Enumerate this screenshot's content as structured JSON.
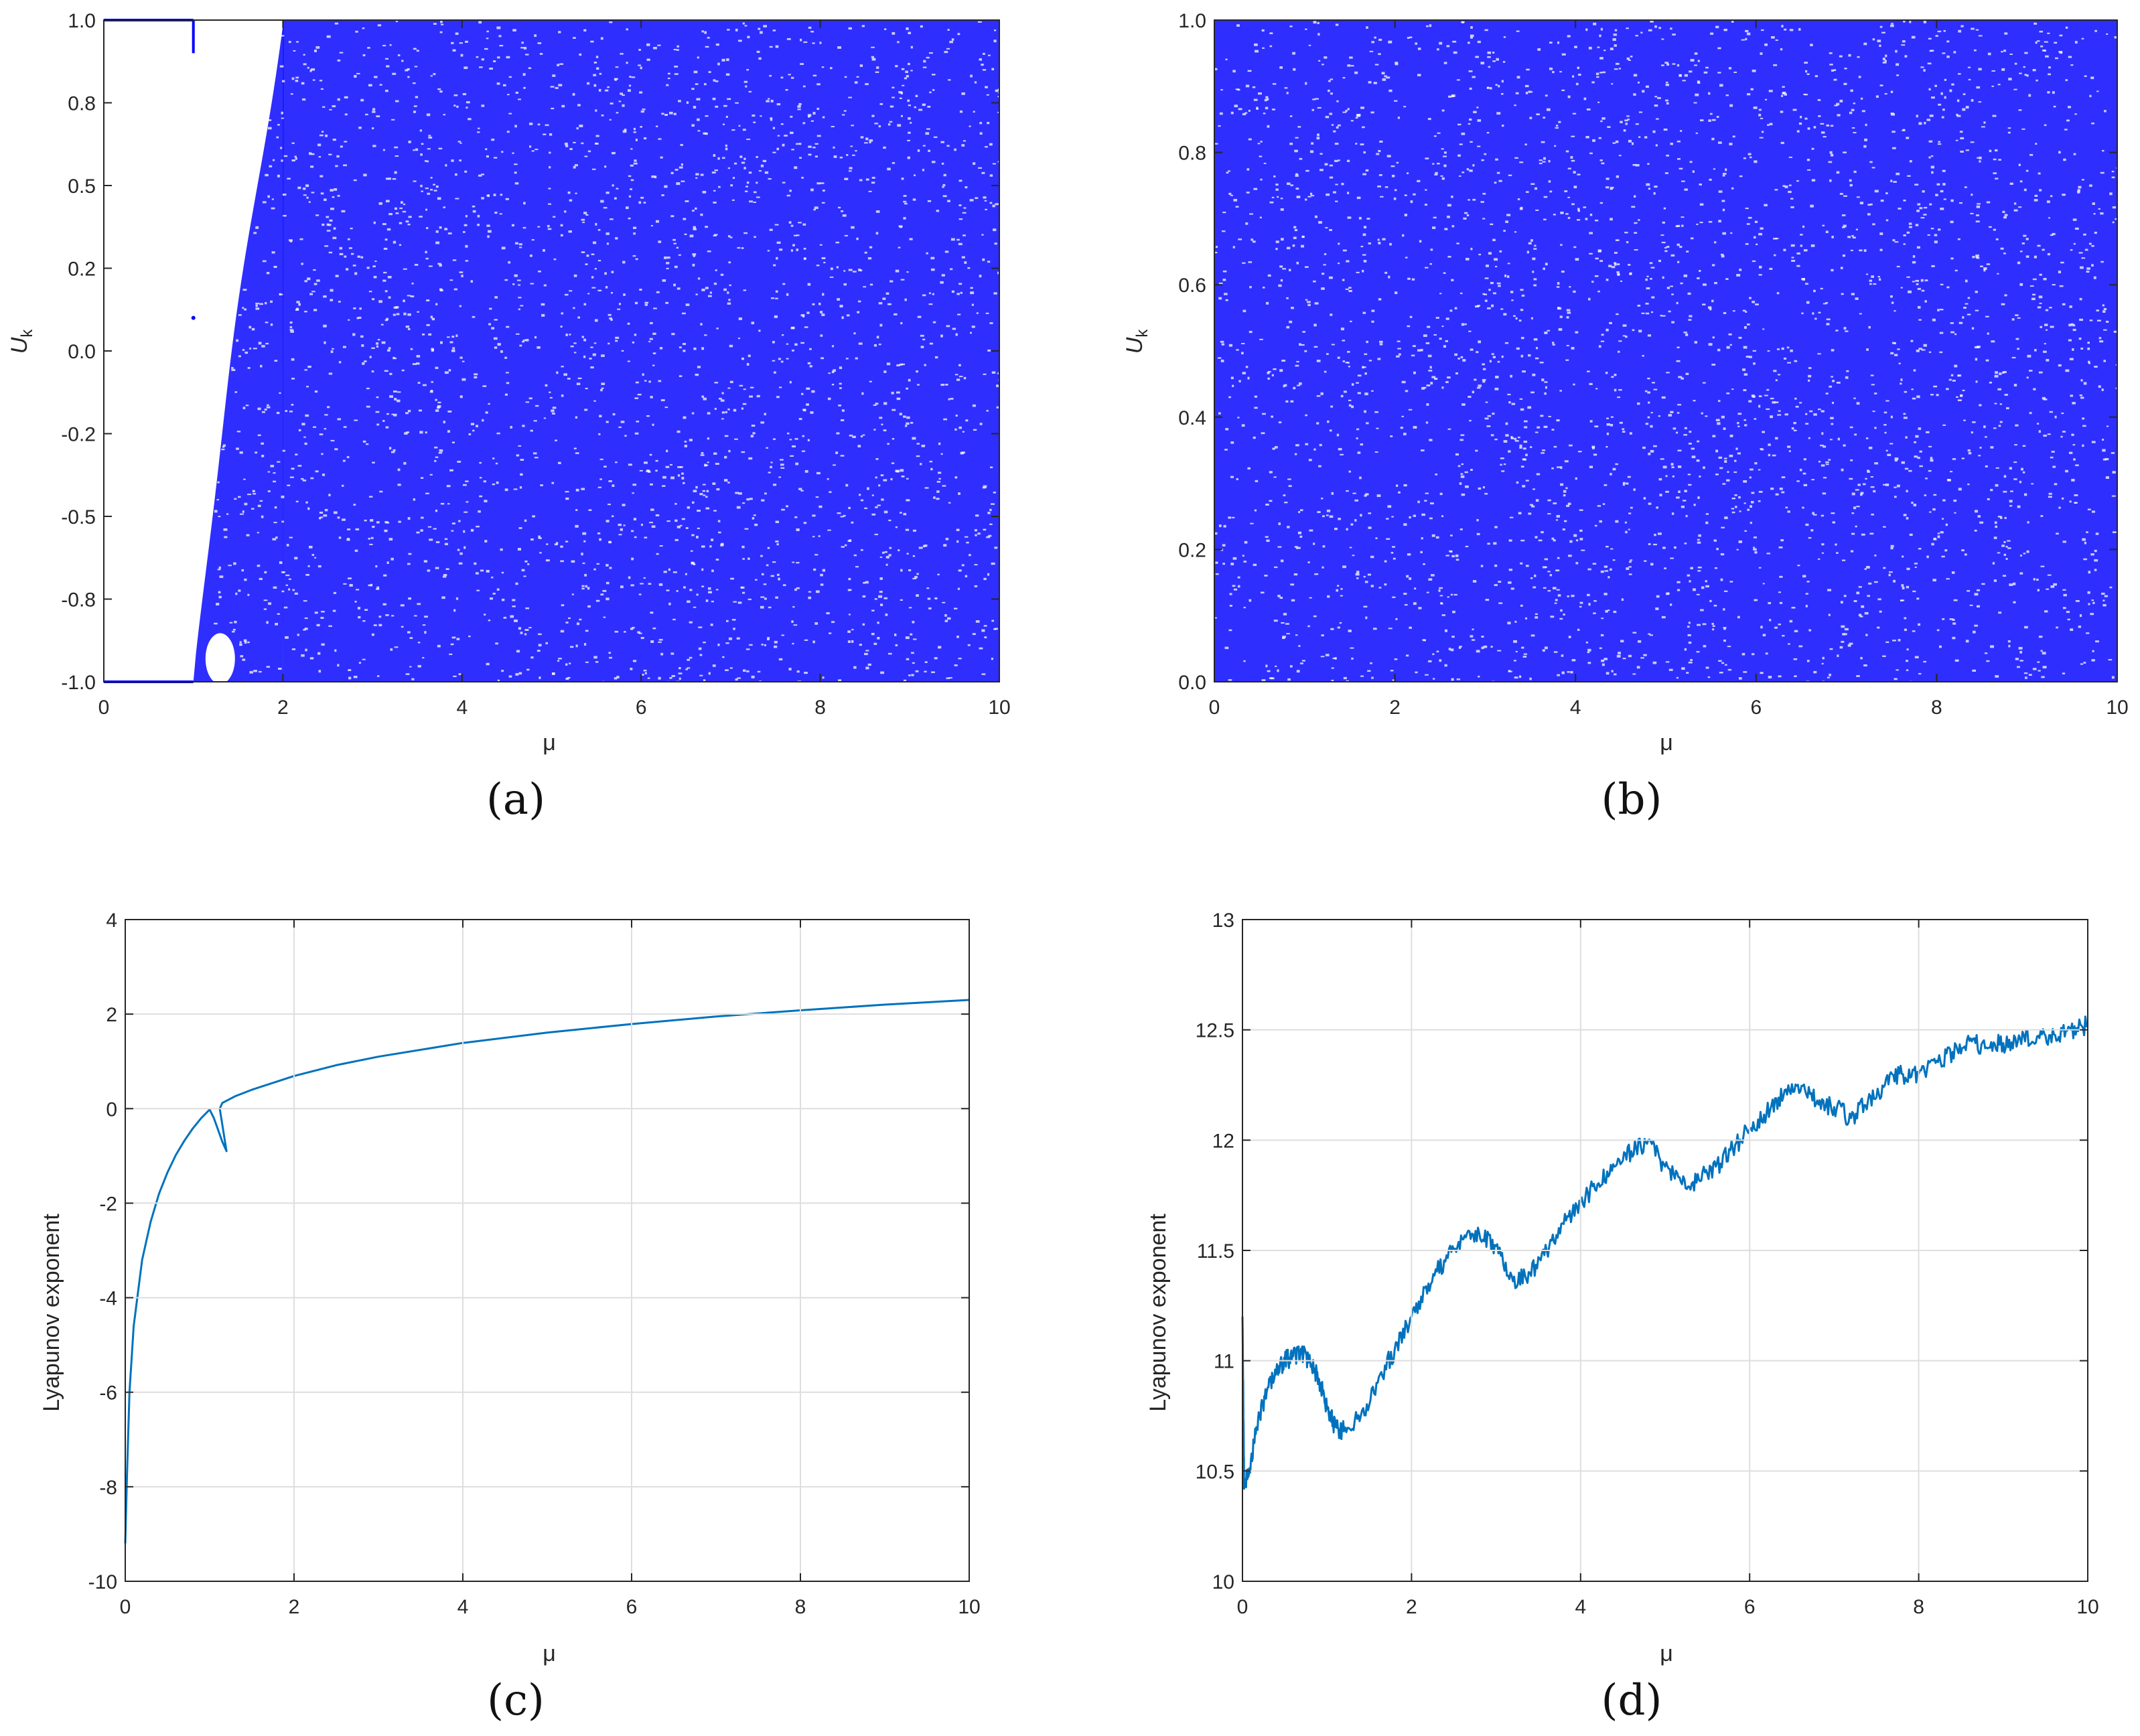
{
  "chart_data": [
    {
      "id": "a",
      "type": "scatter",
      "caption": "(a)",
      "xlabel": "μ",
      "ylabel": "U",
      "ylabel_subscript": "k",
      "xlim": [
        0,
        10
      ],
      "ylim": [
        -1.0,
        1.0
      ],
      "grid": false,
      "xticks": [
        "0",
        "2",
        "4",
        "6",
        "8",
        "10"
      ],
      "yticks": [
        "-1.0",
        "-0.8",
        "-0.5",
        "-0.2",
        "0.0",
        "0.2",
        "0.5",
        "0.8",
        "1.0"
      ],
      "ytick_values": [
        -1.0,
        -0.75,
        -0.5,
        -0.25,
        0.0,
        0.25,
        0.5,
        0.75,
        1.0
      ],
      "description_points": {
        "fixed_point_upper": {
          "mu_range": [
            0,
            1.0
          ],
          "u": 1.0
        },
        "fixed_point_lower": {
          "mu_range": [
            0,
            1.0
          ],
          "u": -1.0
        },
        "chaotic_onset_mu": [
          1.0,
          2.0
        ],
        "chaotic_fill": {
          "mu_range": [
            2.0,
            10.0
          ],
          "u_range": [
            -1.0,
            1.0
          ]
        }
      },
      "color": "#0000ff"
    },
    {
      "id": "b",
      "type": "scatter",
      "caption": "(b)",
      "xlabel": "μ",
      "ylabel": "U",
      "ylabel_subscript": "k",
      "xlim": [
        0,
        10
      ],
      "ylim": [
        0.0,
        1.0
      ],
      "grid": false,
      "xticks": [
        "0",
        "2",
        "4",
        "6",
        "8",
        "10"
      ],
      "yticks": [
        "0.0",
        "0.2",
        "0.4",
        "0.6",
        "0.8",
        "1.0"
      ],
      "ytick_values": [
        0.0,
        0.2,
        0.4,
        0.6,
        0.8,
        1.0
      ],
      "description_points": {
        "chaotic_fill": {
          "mu_range": [
            0.0,
            10.0
          ],
          "u_range": [
            0.0,
            1.0
          ]
        }
      },
      "color": "#0000ff"
    },
    {
      "id": "c",
      "type": "line",
      "caption": "(c)",
      "xlabel": "μ",
      "ylabel": "Lyapunov exponent",
      "xlim": [
        0,
        10
      ],
      "ylim": [
        -10,
        4
      ],
      "grid": true,
      "xticks": [
        "0",
        "2",
        "4",
        "6",
        "8",
        "10"
      ],
      "yticks": [
        "-10",
        "-8",
        "-6",
        "-4",
        "-2",
        "0",
        "2",
        "4"
      ],
      "ytick_values": [
        -10,
        -8,
        -6,
        -4,
        -2,
        0,
        2,
        4
      ],
      "series": [
        {
          "name": "Lyapunov exponent",
          "x": [
            0.0,
            0.02,
            0.05,
            0.1,
            0.2,
            0.3,
            0.4,
            0.5,
            0.6,
            0.7,
            0.8,
            0.9,
            1.0,
            1.05,
            1.1,
            1.15,
            1.2,
            1.12,
            1.15,
            1.3,
            1.5,
            2.0,
            2.5,
            3.0,
            4.0,
            5.0,
            6.0,
            7.0,
            8.0,
            9.0,
            10.0
          ],
          "y": [
            -9.2,
            -7.8,
            -6.0,
            -4.6,
            -3.2,
            -2.4,
            -1.8,
            -1.35,
            -0.98,
            -0.68,
            -0.42,
            -0.2,
            -0.02,
            -0.2,
            -0.45,
            -0.7,
            -0.9,
            0.0,
            0.12,
            0.26,
            0.4,
            0.69,
            0.92,
            1.1,
            1.39,
            1.61,
            1.79,
            1.95,
            2.08,
            2.2,
            2.3
          ]
        }
      ],
      "color": "#0072bd"
    },
    {
      "id": "d",
      "type": "line",
      "caption": "(d)",
      "xlabel": "μ",
      "ylabel": "Lyapunov exponent",
      "xlim": [
        0,
        10
      ],
      "ylim": [
        10,
        13
      ],
      "grid": true,
      "xticks": [
        "0",
        "2",
        "4",
        "6",
        "8",
        "10"
      ],
      "yticks": [
        "10",
        "10.5",
        "11",
        "11.5",
        "12",
        "12.5",
        "13"
      ],
      "ytick_values": [
        10,
        10.5,
        11,
        11.5,
        12,
        12.5,
        13
      ],
      "series": [
        {
          "name": "Lyapunov exponent",
          "x": [
            0.0,
            0.02,
            0.1,
            0.2,
            0.3,
            0.4,
            0.5,
            0.6,
            0.7,
            0.8,
            0.9,
            1.0,
            1.1,
            1.2,
            1.4,
            1.6,
            1.8,
            2.0,
            2.2,
            2.4,
            2.6,
            2.8,
            3.0,
            3.2,
            3.4,
            3.6,
            3.8,
            4.0,
            4.2,
            4.4,
            4.6,
            4.8,
            5.0,
            5.2,
            5.4,
            5.6,
            5.8,
            6.0,
            6.2,
            6.4,
            6.6,
            6.8,
            7.0,
            7.2,
            7.4,
            7.6,
            7.8,
            8.0,
            8.2,
            8.4,
            8.6,
            8.8,
            9.0,
            9.2,
            9.4,
            9.6,
            9.8,
            10.0
          ],
          "y": [
            11.2,
            10.42,
            10.55,
            10.75,
            10.88,
            10.95,
            11.0,
            11.02,
            11.03,
            11.0,
            10.92,
            10.78,
            10.7,
            10.68,
            10.75,
            10.9,
            11.05,
            11.2,
            11.35,
            11.45,
            11.55,
            11.58,
            11.52,
            11.36,
            11.4,
            11.5,
            11.62,
            11.72,
            11.8,
            11.88,
            11.95,
            12.0,
            11.88,
            11.8,
            11.82,
            11.88,
            11.96,
            12.05,
            12.12,
            12.2,
            12.22,
            12.18,
            12.15,
            12.1,
            12.18,
            12.25,
            12.3,
            12.3,
            12.35,
            12.4,
            12.45,
            12.42,
            12.44,
            12.46,
            12.47,
            12.48,
            12.5,
            12.52
          ]
        }
      ],
      "color": "#0072bd"
    }
  ]
}
